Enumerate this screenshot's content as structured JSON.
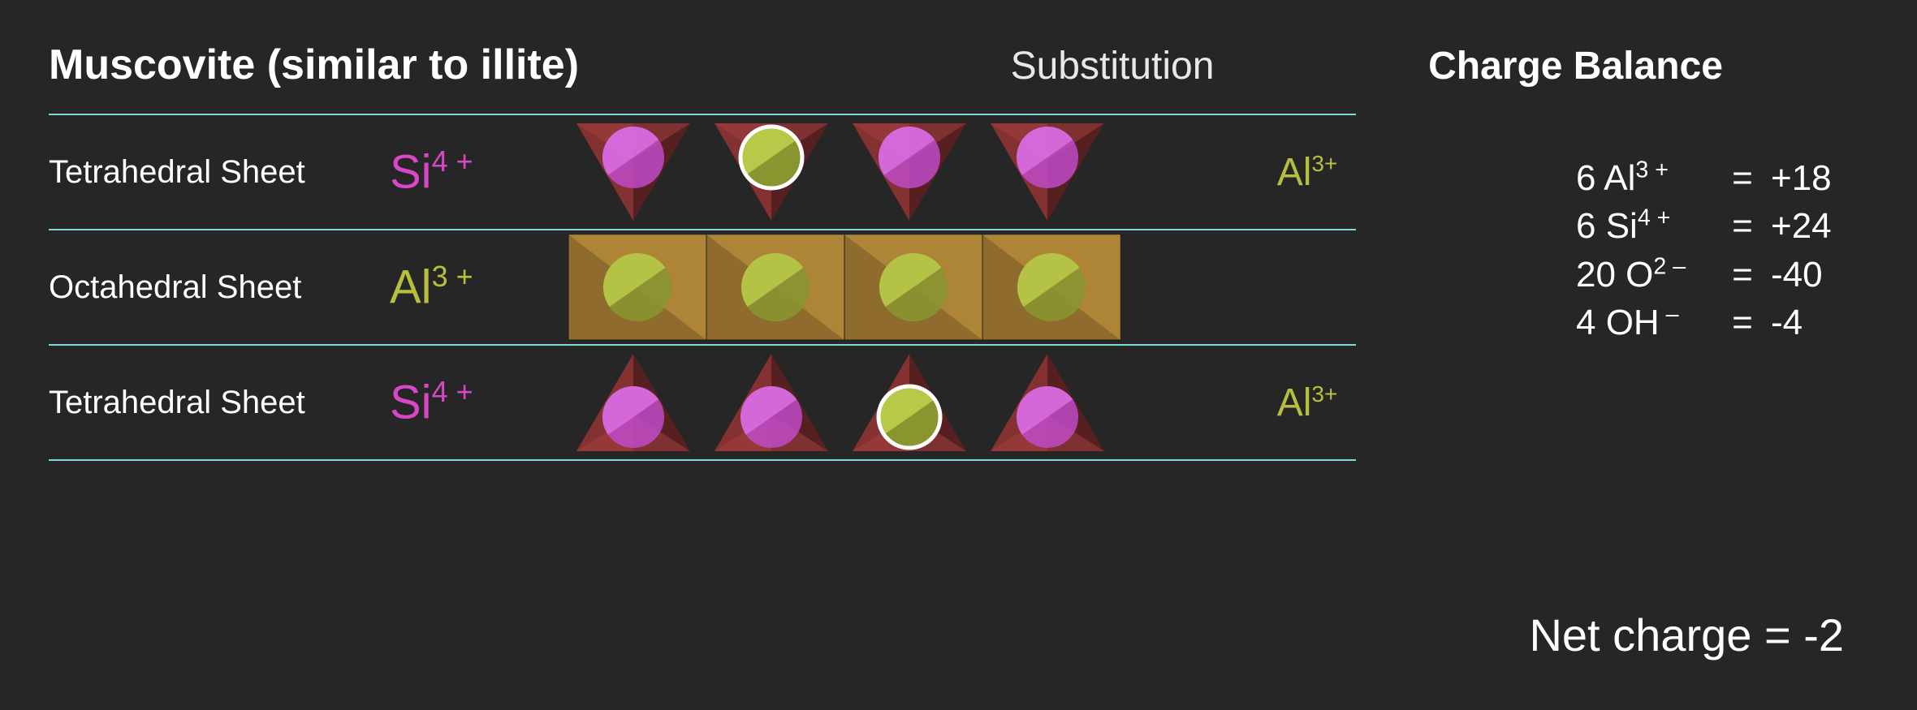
{
  "title": "Muscovite (similar to illite)",
  "headers": {
    "substitution": "Substitution",
    "charge_balance": "Charge Balance"
  },
  "colors": {
    "background": "#262626",
    "text": "#ffffff",
    "divider": "#7dd8d8",
    "si_color": "#d847c6",
    "al_color": "#b8bf3e",
    "tetra_dark": "#5a1f1f",
    "tetra_mid": "#8b3232",
    "tetra_light": "#a84040",
    "si_sphere_light": "#da6fe0",
    "si_sphere_dark": "#c04bc8",
    "al_sphere_light": "#b8c848",
    "al_sphere_dark": "#8a9530",
    "octa_light": "#c99a3e",
    "octa_dark": "#9e7530",
    "octa_border": "#1a1a1a",
    "highlight_ring": "#ffffff"
  },
  "sheets": [
    {
      "name": "Tetrahedral Sheet",
      "ion": "Si",
      "ion_charge": "4 +",
      "ion_color_key": "si_color",
      "type": "tetra_down",
      "substitution_ion": "Al",
      "substitution_charge": "3+",
      "substituted_index": 1
    },
    {
      "name": "Octahedral Sheet",
      "ion": "Al",
      "ion_charge": "3 +",
      "ion_color_key": "al_color",
      "type": "octa",
      "substitution_ion": "",
      "substitution_charge": "",
      "substituted_index": -1
    },
    {
      "name": "Tetrahedral Sheet",
      "ion": "Si",
      "ion_charge": "4 +",
      "ion_color_key": "si_color",
      "type": "tetra_up",
      "substitution_ion": "Al",
      "substitution_charge": "3+",
      "substituted_index": 2
    }
  ],
  "charge_balance": [
    {
      "ion": "6 Al",
      "sup": "3 +",
      "value": "+18"
    },
    {
      "ion": "6 Si",
      "sup": "4 +",
      "value": "+24"
    },
    {
      "ion": "20 O",
      "sup": "2 –",
      "value": "-40"
    },
    {
      "ion": "4 OH",
      "sup": " –",
      "value": "-4"
    }
  ],
  "net_charge_label": "Net charge = -2",
  "shape_count": 4
}
